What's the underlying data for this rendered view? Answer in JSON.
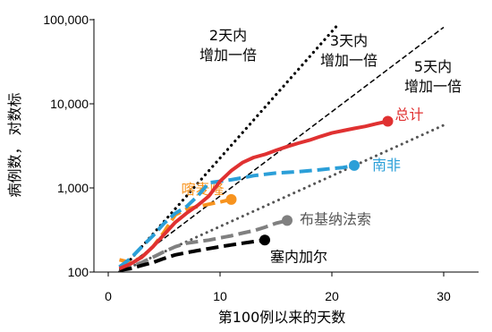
{
  "chart_data": {
    "type": "line",
    "title": "",
    "xlabel": "第100例以来的天数",
    "ylabel": "病例数， 对数标",
    "x_ticks": [
      0,
      10,
      20,
      30
    ],
    "y_ticks": [
      100,
      1000,
      10000,
      100000
    ],
    "y_tick_labels": [
      "100",
      "1,000",
      "10,000",
      "100,000"
    ],
    "xlim": [
      0,
      33
    ],
    "ylim": [
      100,
      100000
    ],
    "y_scale": "log",
    "grid": false,
    "reference_lines": [
      {
        "label_line1": "2天内",
        "label_line2": "增加一倍",
        "doubling_days": 2,
        "style": "dotted",
        "color": "#000000",
        "x": [
          1,
          20.5
        ]
      },
      {
        "label_line1": "3天内",
        "label_line2": "增加一倍",
        "doubling_days": 3,
        "style": "dashed",
        "color": "#000000",
        "x": [
          1,
          30
        ]
      },
      {
        "label_line1": "5天内",
        "label_line2": "增加一倍",
        "doubling_days": 5,
        "style": "dotted",
        "color": "#555555",
        "x": [
          1,
          30
        ]
      }
    ],
    "series": [
      {
        "name": "总计",
        "color": "#e03131",
        "dash": "solid",
        "x": [
          1,
          2,
          3,
          4,
          5,
          6,
          7,
          8,
          9,
          10,
          11,
          12,
          13,
          14,
          15,
          16,
          17,
          18,
          19,
          20,
          21,
          22,
          23,
          24,
          25
        ],
        "y": [
          110,
          125,
          150,
          200,
          280,
          390,
          500,
          620,
          800,
          1200,
          1600,
          2000,
          2300,
          2500,
          2800,
          3100,
          3400,
          3700,
          4100,
          4500,
          4800,
          5100,
          5400,
          5800,
          6200
        ]
      },
      {
        "name": "南非",
        "color": "#2b9fd8",
        "dash": "dashed",
        "x": [
          1,
          2,
          3,
          4,
          5,
          6,
          7,
          8,
          9,
          10,
          11,
          12,
          13,
          14,
          15,
          16,
          17,
          18,
          19,
          20,
          21,
          22
        ],
        "y": [
          115,
          145,
          200,
          270,
          380,
          500,
          600,
          800,
          1150,
          1200,
          1250,
          1320,
          1400,
          1450,
          1500,
          1530,
          1560,
          1600,
          1650,
          1700,
          1750,
          1850
        ]
      },
      {
        "name": "喀麦隆",
        "color": "#f7931e",
        "dash": "dashed",
        "x": [
          1,
          2,
          3,
          4,
          5,
          6,
          7,
          8,
          9,
          10,
          11
        ],
        "y": [
          140,
          130,
          150,
          200,
          300,
          480,
          560,
          600,
          640,
          680,
          730
        ]
      },
      {
        "name": "布基纳法索",
        "color": "#808080",
        "dash": "dashed",
        "x": [
          1,
          2,
          3,
          4,
          5,
          6,
          7,
          8,
          9,
          10,
          11,
          12,
          13,
          14,
          15,
          16
        ],
        "y": [
          105,
          115,
          130,
          150,
          175,
          200,
          220,
          230,
          240,
          255,
          270,
          290,
          310,
          340,
          380,
          410
        ]
      },
      {
        "name": "塞内加尔",
        "color": "#000000",
        "dash": "dashed",
        "x": [
          1,
          2,
          3,
          4,
          5,
          6,
          7,
          8,
          9,
          10,
          11,
          12,
          13,
          14
        ],
        "y": [
          105,
          110,
          120,
          130,
          145,
          160,
          170,
          180,
          190,
          200,
          210,
          220,
          230,
          240
        ]
      }
    ]
  }
}
